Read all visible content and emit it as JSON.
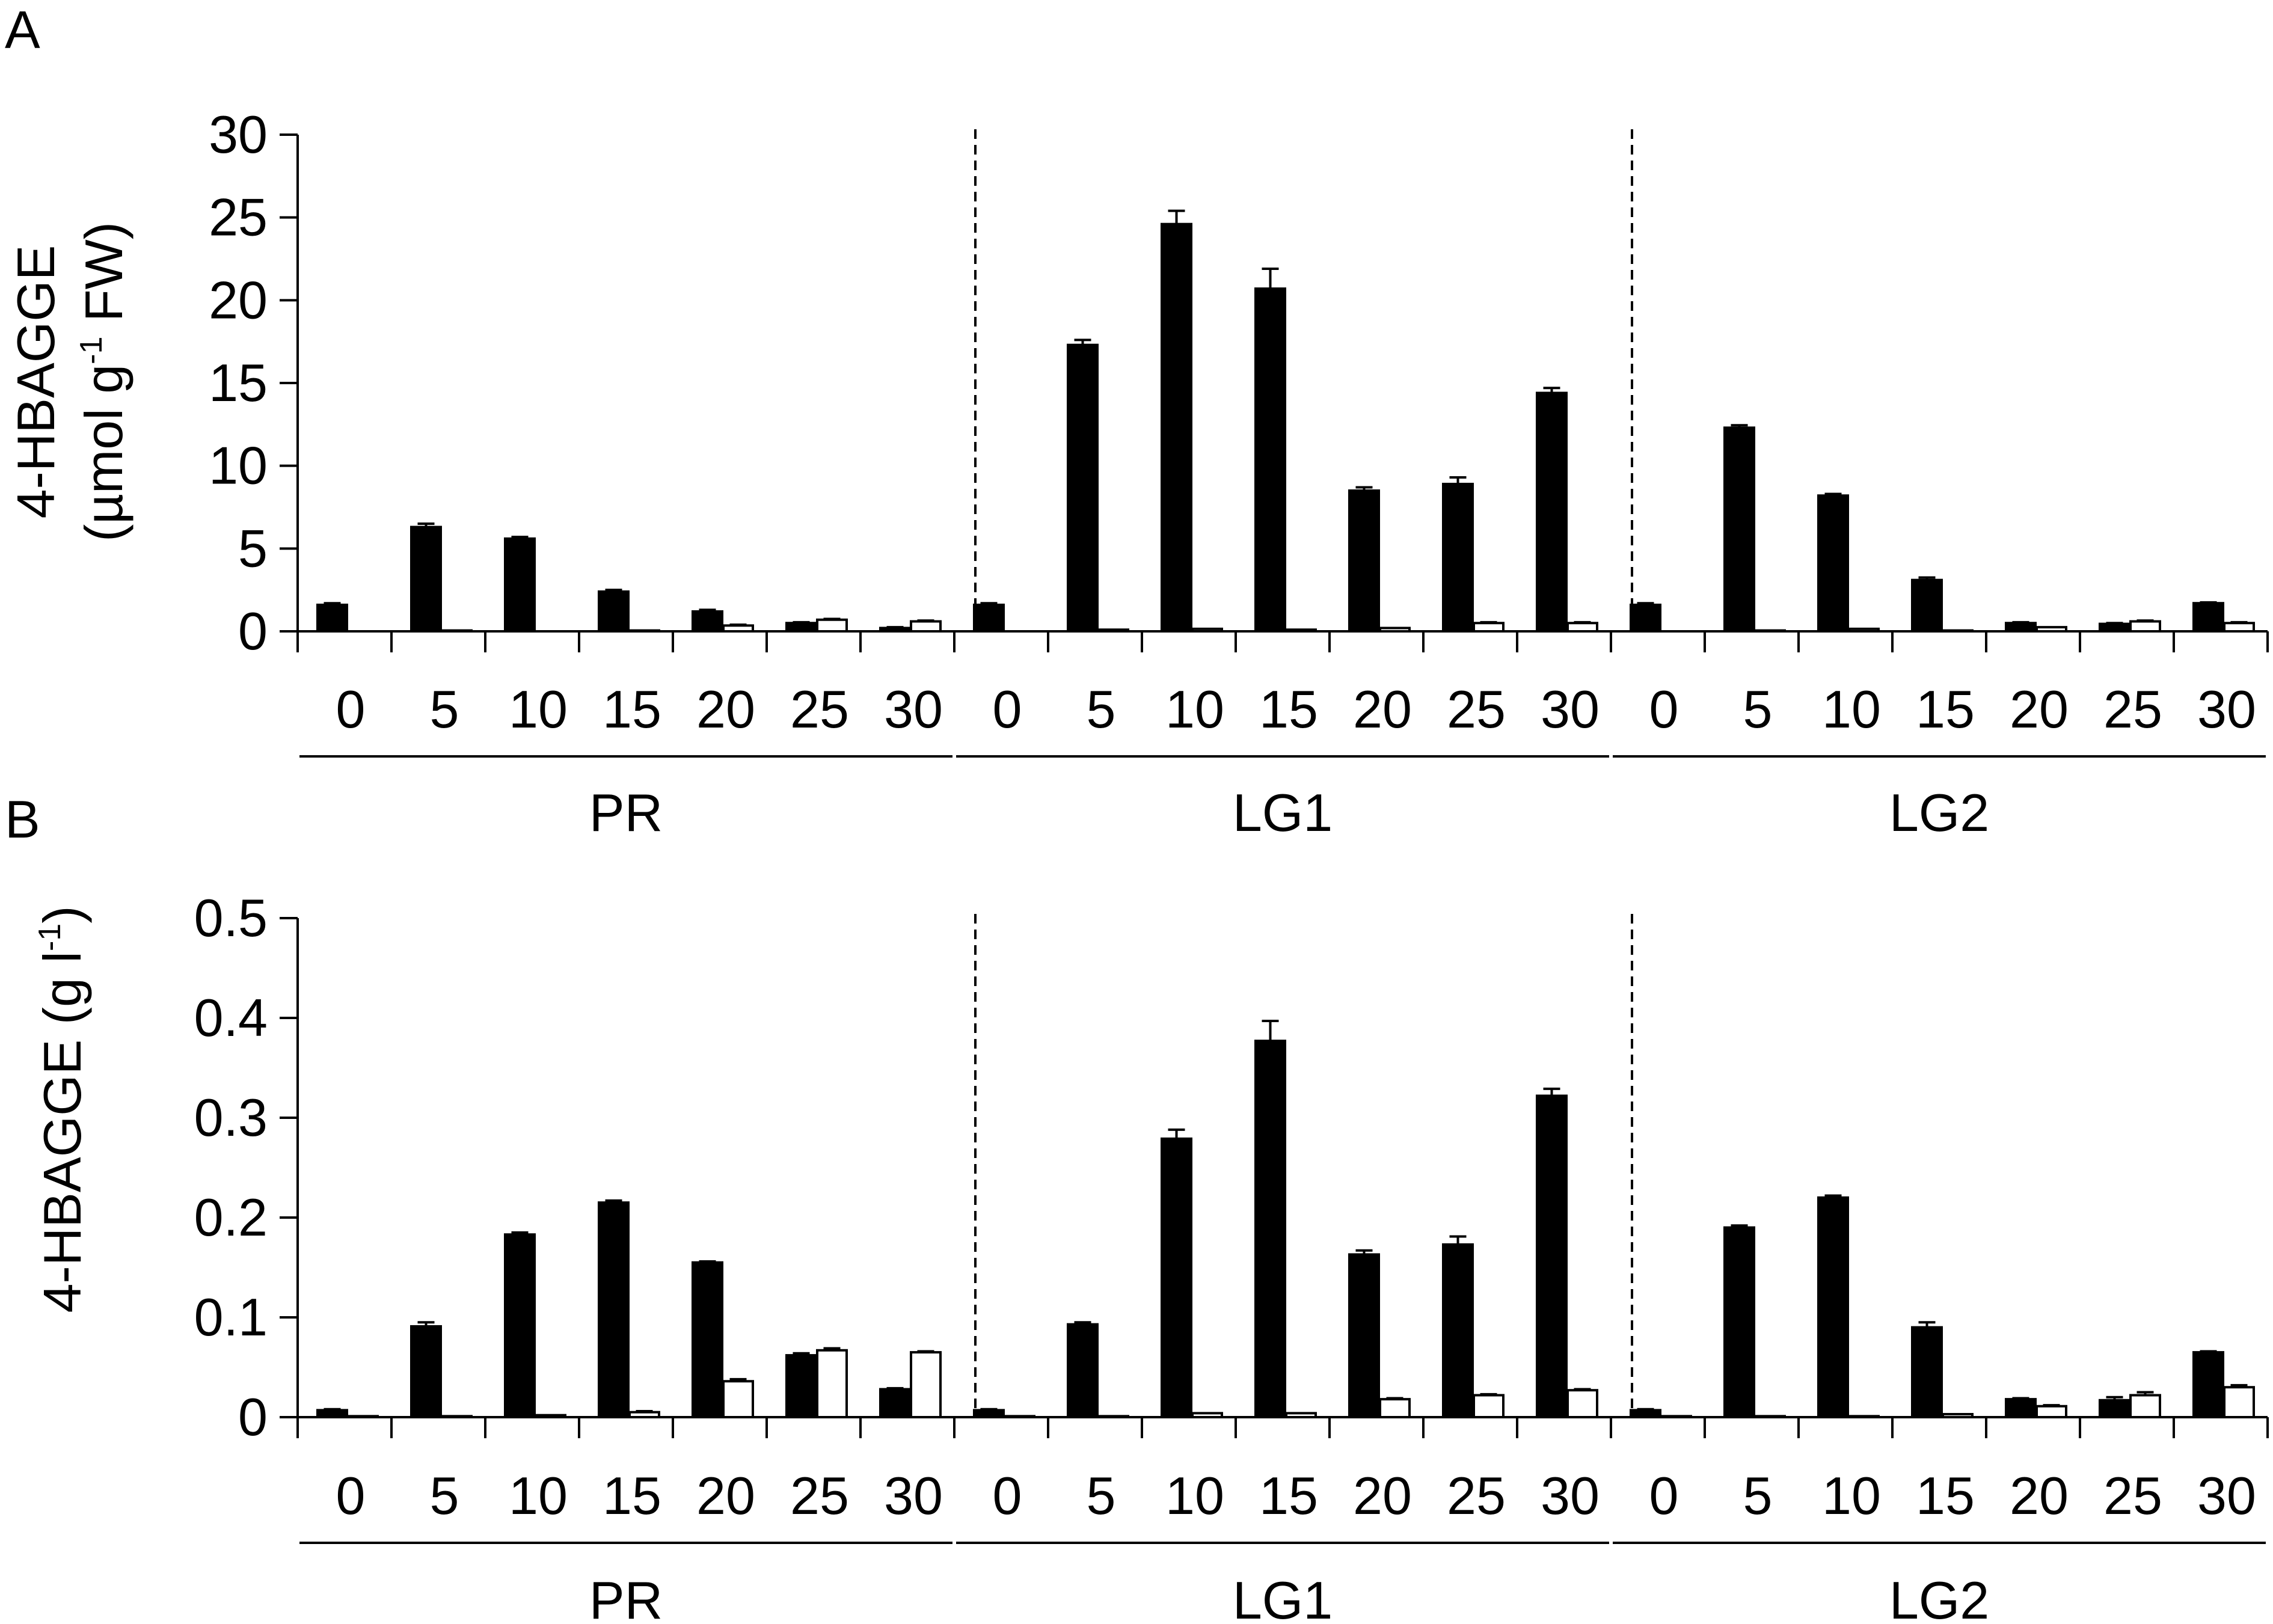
{
  "colors": {
    "filled": "#000000",
    "open": "#ffffff",
    "stroke": "#000000"
  },
  "chart_data": [
    {
      "type": "bar",
      "panel": "A",
      "ylabel_line1": "4-HBAGGE",
      "ylabel_line2_pre": "(µmol g",
      "ylabel_line2_sup": "-1",
      "ylabel_line2_post": " FW)",
      "ylim": [
        0,
        30
      ],
      "yticks": [
        "0",
        "5",
        "10",
        "15",
        "20",
        "25",
        "30"
      ],
      "ytick_values": [
        0,
        5,
        10,
        15,
        20,
        25,
        30
      ],
      "groups": [
        {
          "name": "PR",
          "categories": [
            "0",
            "5",
            "10",
            "15",
            "20",
            "25",
            "30"
          ],
          "series": [
            {
              "fill": "filled",
              "values": [
                1.6,
                6.3,
                5.6,
                2.4,
                1.2,
                0.5,
                0.2
              ],
              "errors": [
                0.1,
                0.2,
                0.1,
                0.1,
                0.1,
                0.05,
                0.05
              ]
            },
            {
              "fill": "open",
              "values": [
                0,
                0.05,
                0,
                0.05,
                0.35,
                0.7,
                0.6
              ],
              "errors": [
                0,
                0,
                0,
                0,
                0.05,
                0.05,
                0.05
              ]
            }
          ]
        },
        {
          "name": "LG1",
          "categories": [
            "0",
            "5",
            "10",
            "15",
            "20",
            "25",
            "30"
          ],
          "series": [
            {
              "fill": "filled",
              "values": [
                1.6,
                17.3,
                24.6,
                20.7,
                8.5,
                8.9,
                14.4
              ],
              "errors": [
                0.1,
                0.3,
                0.8,
                1.2,
                0.2,
                0.4,
                0.3
              ]
            },
            {
              "fill": "open",
              "values": [
                0,
                0.1,
                0.15,
                0.1,
                0.2,
                0.5,
                0.5
              ],
              "errors": [
                0,
                0,
                0,
                0,
                0,
                0.05,
                0.05
              ]
            }
          ]
        },
        {
          "name": "LG2",
          "categories": [
            "0",
            "5",
            "10",
            "15",
            "20",
            "25",
            "30"
          ],
          "series": [
            {
              "fill": "filled",
              "values": [
                1.6,
                12.3,
                8.2,
                3.1,
                0.5,
                0.45,
                1.7
              ],
              "errors": [
                0.1,
                0.15,
                0.1,
                0.15,
                0.05,
                0.05,
                0.05
              ]
            },
            {
              "fill": "open",
              "values": [
                0,
                0.05,
                0.15,
                0.05,
                0.25,
                0.6,
                0.5
              ],
              "errors": [
                0,
                0,
                0,
                0,
                0,
                0.05,
                0.05
              ]
            }
          ]
        }
      ]
    },
    {
      "type": "bar",
      "panel": "B",
      "ylabel_line1_pre": "4-HBAGGE (g l",
      "ylabel_line1_sup": "-1",
      "ylabel_line1_post": ")",
      "ylim": [
        0,
        0.5
      ],
      "yticks": [
        "0",
        "0.1",
        "0.2",
        "0.3",
        "0.4",
        "0.5"
      ],
      "ytick_values": [
        0,
        0.1,
        0.2,
        0.3,
        0.4,
        0.5
      ],
      "groups": [
        {
          "name": "PR",
          "categories": [
            "0",
            "5",
            "10",
            "15",
            "20",
            "25",
            "30"
          ],
          "series": [
            {
              "fill": "filled",
              "values": [
                0.007,
                0.091,
                0.183,
                0.215,
                0.155,
                0.062,
                0.028
              ],
              "errors": [
                0.001,
                0.004,
                0.002,
                0.002,
                0.001,
                0.002,
                0.001
              ]
            },
            {
              "fill": "open",
              "values": [
                0.001,
                0.001,
                0.002,
                0.005,
                0.036,
                0.067,
                0.065
              ],
              "errors": [
                0,
                0,
                0,
                0.001,
                0.002,
                0.002,
                0.001
              ]
            }
          ]
        },
        {
          "name": "LG1",
          "categories": [
            "0",
            "5",
            "10",
            "15",
            "20",
            "25",
            "30"
          ],
          "series": [
            {
              "fill": "filled",
              "values": [
                0.007,
                0.093,
                0.279,
                0.377,
                0.163,
                0.173,
                0.322
              ],
              "errors": [
                0.001,
                0.002,
                0.009,
                0.02,
                0.004,
                0.008,
                0.007
              ]
            },
            {
              "fill": "open",
              "values": [
                0.001,
                0.001,
                0.004,
                0.004,
                0.018,
                0.022,
                0.027
              ],
              "errors": [
                0,
                0,
                0,
                0,
                0.001,
                0.001,
                0.001
              ]
            }
          ]
        },
        {
          "name": "LG2",
          "categories": [
            "0",
            "5",
            "10",
            "15",
            "20",
            "25",
            "30"
          ],
          "series": [
            {
              "fill": "filled",
              "values": [
                0.007,
                0.19,
                0.22,
                0.09,
                0.018,
                0.017,
                0.065
              ],
              "errors": [
                0.001,
                0.002,
                0.002,
                0.005,
                0.001,
                0.003,
                0.001
              ]
            },
            {
              "fill": "open",
              "values": [
                0.001,
                0.001,
                0.001,
                0.003,
                0.011,
                0.022,
                0.03
              ],
              "errors": [
                0,
                0,
                0,
                0,
                0.001,
                0.003,
                0.002
              ]
            }
          ]
        }
      ]
    }
  ]
}
